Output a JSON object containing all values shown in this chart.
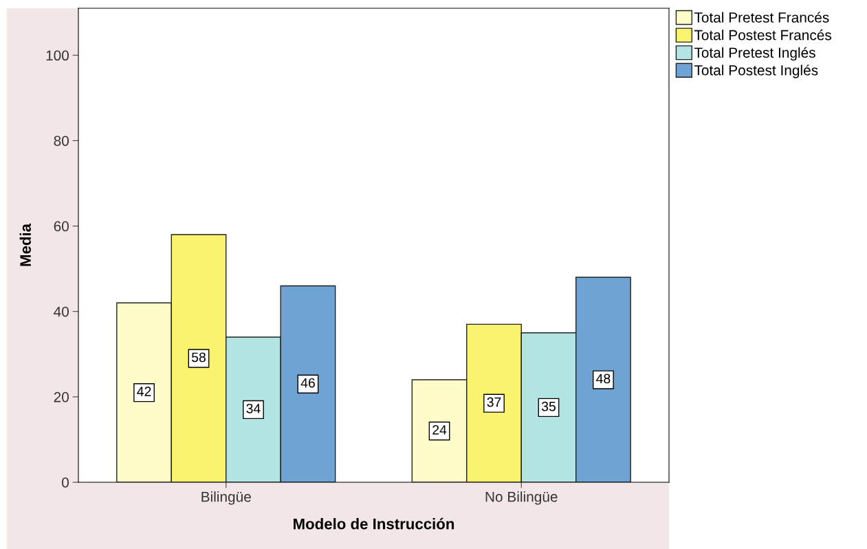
{
  "chart_data": {
    "type": "bar",
    "xlabel": "Modelo de Instrucción",
    "ylabel": "Media",
    "categories": [
      "Bilingüe",
      "No Bilingüe"
    ],
    "series": [
      {
        "name": "Total Pretest Francés",
        "color": "#fefcc8",
        "values": [
          42,
          24
        ]
      },
      {
        "name": "Total Postest Francés",
        "color": "#f9f36e",
        "values": [
          58,
          37
        ]
      },
      {
        "name": "Total Pretest Inglés",
        "color": "#b3e5e5",
        "values": [
          34,
          35
        ]
      },
      {
        "name": "Total Postest Inglés",
        "color": "#6fa3d3",
        "values": [
          46,
          48
        ]
      }
    ],
    "ylim": [
      0,
      111
    ],
    "yticks": [
      0,
      20,
      40,
      60,
      80,
      100
    ],
    "data_labels": true,
    "legend": "top right",
    "grid": false
  }
}
